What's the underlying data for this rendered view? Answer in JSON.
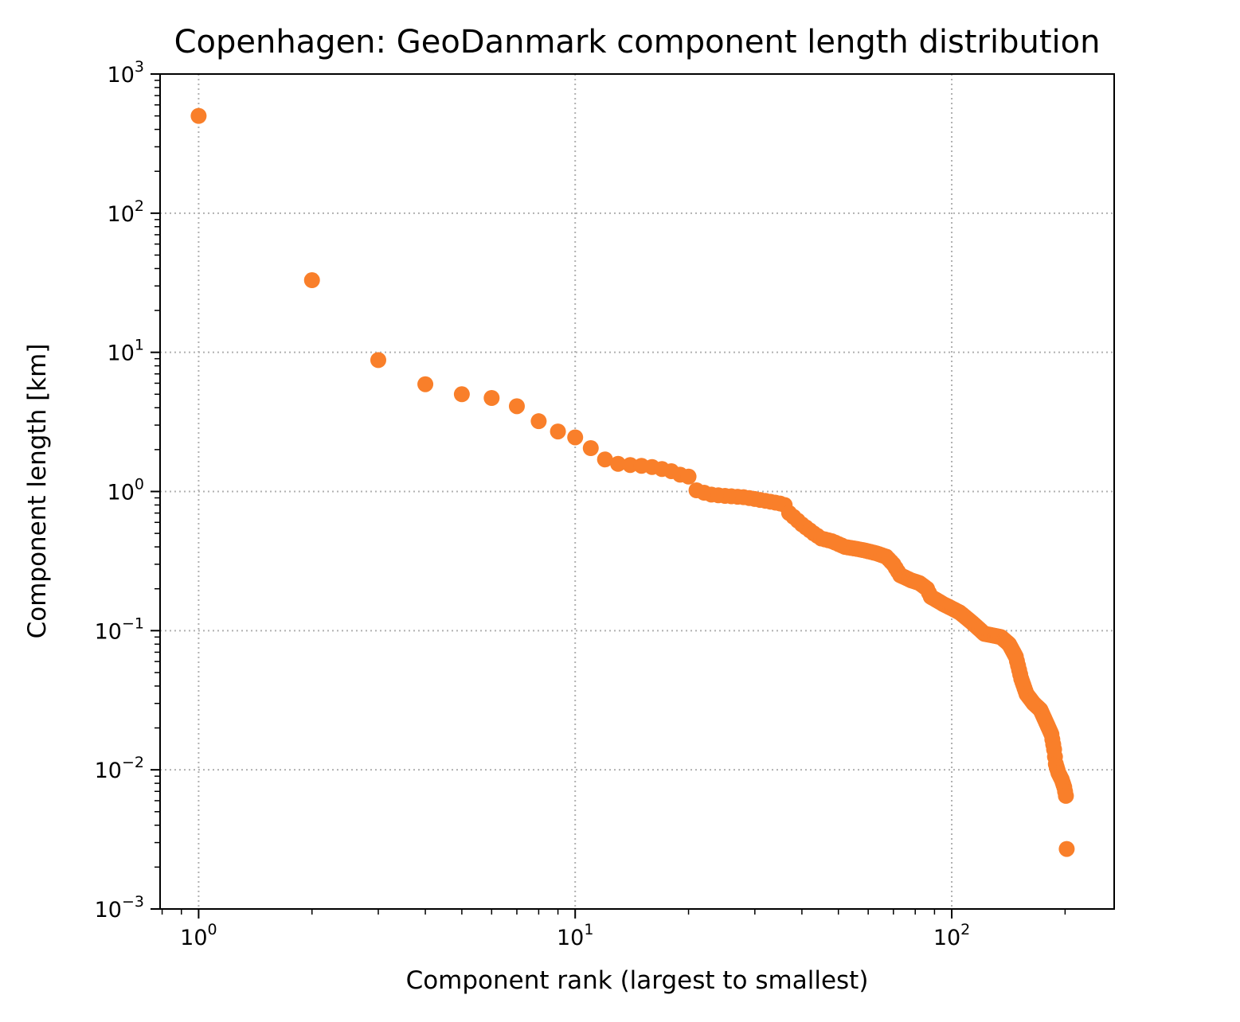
{
  "chart_data": {
    "type": "scatter",
    "title": "Copenhagen: GeoDanmark component length distribution",
    "xlabel": "Component rank (largest to smallest)",
    "ylabel": "Component length [km]",
    "xscale": "log",
    "yscale": "log",
    "xlim": [
      0.79,
      270
    ],
    "ylim": [
      0.001,
      1000
    ],
    "grid": true,
    "marker_color": "#f97f2a",
    "x_ticks": [
      {
        "value": 1,
        "base": "10",
        "exp": "0"
      },
      {
        "value": 10,
        "base": "10",
        "exp": "1"
      },
      {
        "value": 100,
        "base": "10",
        "exp": "2"
      }
    ],
    "y_ticks": [
      {
        "value": 0.001,
        "base": "10",
        "exp": "−3"
      },
      {
        "value": 0.01,
        "base": "10",
        "exp": "−2"
      },
      {
        "value": 0.1,
        "base": "10",
        "exp": "−1"
      },
      {
        "value": 1,
        "base": "10",
        "exp": "0"
      },
      {
        "value": 10,
        "base": "10",
        "exp": "1"
      },
      {
        "value": 100,
        "base": "10",
        "exp": "2"
      },
      {
        "value": 1000,
        "base": "10",
        "exp": "3"
      }
    ],
    "series": [
      {
        "anchors": [
          [
            1,
            500
          ],
          [
            2,
            33
          ],
          [
            3,
            8.8
          ],
          [
            4,
            5.9
          ],
          [
            5,
            5.0
          ],
          [
            6,
            4.7
          ],
          [
            7,
            4.1
          ],
          [
            8,
            3.2
          ],
          [
            9,
            2.7
          ],
          [
            10,
            2.45
          ],
          [
            11,
            2.05
          ],
          [
            12,
            1.7
          ],
          [
            13,
            1.58
          ],
          [
            14,
            1.55
          ],
          [
            15,
            1.53
          ],
          [
            16,
            1.5
          ],
          [
            17,
            1.45
          ],
          [
            18,
            1.4
          ],
          [
            19,
            1.32
          ],
          [
            20,
            1.28
          ],
          [
            21,
            1.02
          ],
          [
            22,
            0.98
          ],
          [
            23,
            0.95
          ],
          [
            25,
            0.93
          ],
          [
            28,
            0.91
          ],
          [
            31,
            0.87
          ],
          [
            35,
            0.82
          ],
          [
            36,
            0.8
          ],
          [
            37,
            0.7
          ],
          [
            40,
            0.58
          ],
          [
            43,
            0.5
          ],
          [
            45,
            0.46
          ],
          [
            48,
            0.44
          ],
          [
            52,
            0.4
          ],
          [
            58,
            0.38
          ],
          [
            63,
            0.36
          ],
          [
            67,
            0.34
          ],
          [
            70,
            0.3
          ],
          [
            73,
            0.25
          ],
          [
            78,
            0.23
          ],
          [
            82,
            0.22
          ],
          [
            86,
            0.2
          ],
          [
            88,
            0.175
          ],
          [
            95,
            0.155
          ],
          [
            105,
            0.135
          ],
          [
            115,
            0.11
          ],
          [
            122,
            0.095
          ],
          [
            135,
            0.09
          ],
          [
            142,
            0.08
          ],
          [
            148,
            0.065
          ],
          [
            153,
            0.045
          ],
          [
            158,
            0.035
          ],
          [
            165,
            0.03
          ],
          [
            172,
            0.027
          ],
          [
            178,
            0.022
          ],
          [
            184,
            0.018
          ],
          [
            187,
            0.014
          ],
          [
            189,
            0.011
          ],
          [
            192,
            0.0095
          ],
          [
            196,
            0.0085
          ],
          [
            199,
            0.0075
          ],
          [
            201,
            0.0065
          ],
          [
            202,
            0.0027
          ]
        ]
      }
    ]
  }
}
